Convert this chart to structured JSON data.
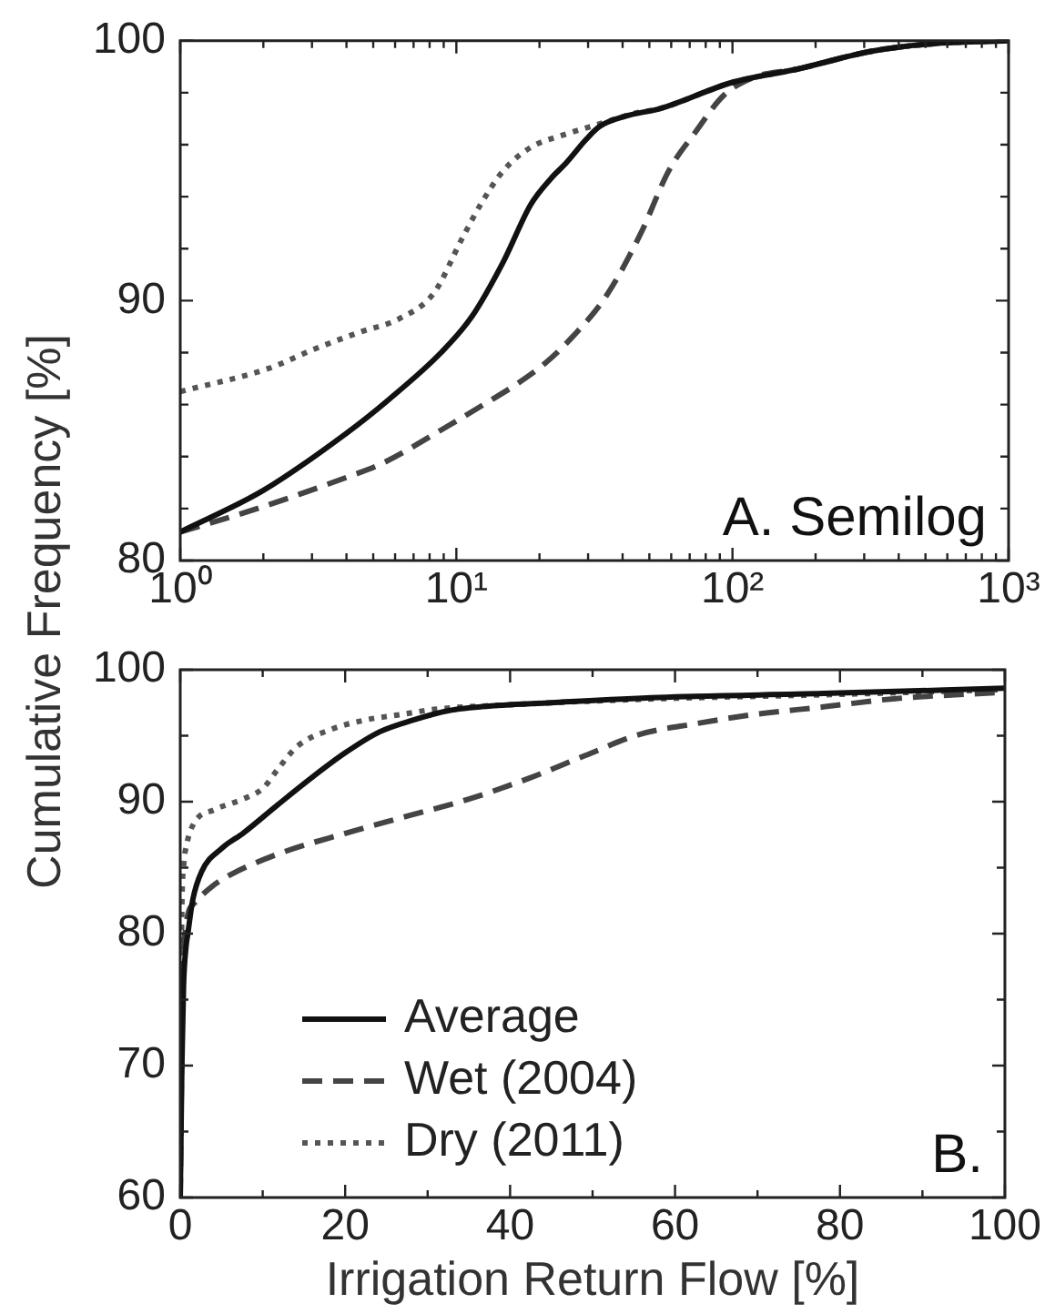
{
  "chart_data": [
    {
      "type": "line",
      "ylabel": "Cumulative Frequency [%]",
      "annotations": [
        "A. Semilog"
      ],
      "log": "x",
      "marker": "none",
      "xlim": [
        1,
        1000
      ],
      "xticks": [
        {
          "value": 1,
          "label": "10⁰"
        },
        {
          "value": 2,
          "label": null
        },
        {
          "value": 3,
          "label": null
        },
        {
          "value": 4,
          "label": null
        },
        {
          "value": 5,
          "label": null
        },
        {
          "value": 6,
          "label": null
        },
        {
          "value": 7,
          "label": null
        },
        {
          "value": 8,
          "label": null
        },
        {
          "value": 9,
          "label": null
        },
        {
          "value": 10,
          "label": "10¹"
        },
        {
          "value": 20,
          "label": null
        },
        {
          "value": 30,
          "label": null
        },
        {
          "value": 40,
          "label": null
        },
        {
          "value": 50,
          "label": null
        },
        {
          "value": 60,
          "label": null
        },
        {
          "value": 70,
          "label": null
        },
        {
          "value": 80,
          "label": null
        },
        {
          "value": 90,
          "label": null
        },
        {
          "value": 100,
          "label": "10²"
        },
        {
          "value": 200,
          "label": null
        },
        {
          "value": 300,
          "label": null
        },
        {
          "value": 400,
          "label": null
        },
        {
          "value": 500,
          "label": null
        },
        {
          "value": 600,
          "label": null
        },
        {
          "value": 700,
          "label": null
        },
        {
          "value": 800,
          "label": null
        },
        {
          "value": 900,
          "label": null
        },
        {
          "value": 1000,
          "label": "10³"
        }
      ],
      "ylim": [
        80,
        100
      ],
      "yticks": [
        80,
        {
          "value": 82,
          "label": null
        },
        {
          "value": 84,
          "label": null
        },
        {
          "value": 86,
          "label": null
        },
        {
          "value": 88,
          "label": null
        },
        90,
        {
          "value": 92,
          "label": null
        },
        {
          "value": 94,
          "label": null
        },
        {
          "value": 96,
          "label": null
        },
        {
          "value": 98,
          "label": null
        },
        100
      ],
      "series": [
        {
          "color": "#111111",
          "line_style": "solid",
          "x": [
            1,
            2,
            4,
            5.7,
            8.8,
            11.4,
            14.8,
            18.6,
            22,
            25,
            29.5,
            33,
            41,
            55,
            100,
            170,
            320,
            550,
            1000
          ],
          "values": [
            81.1,
            82.7,
            84.9,
            86.2,
            88.0,
            89.4,
            91.5,
            93.7,
            94.7,
            95.3,
            96.2,
            96.7,
            97.1,
            97.4,
            98.4,
            98.9,
            99.6,
            99.9,
            100
          ]
        },
        {
          "color": "#444444",
          "line_style": "dashed",
          "x": [
            1,
            1.9,
            4,
            5.3,
            9.4,
            13,
            16.6,
            21,
            26.3,
            35,
            46.6,
            58.8,
            73.6,
            93,
            120,
            170,
            320,
            550,
            1000
          ],
          "values": [
            81.1,
            82.0,
            83.2,
            83.7,
            85.2,
            86.1,
            86.8,
            87.6,
            88.6,
            90.2,
            92.6,
            95.0,
            96.5,
            97.9,
            98.6,
            98.9,
            99.6,
            99.9,
            100
          ]
        },
        {
          "color": "#555555",
          "line_style": "dotted",
          "x": [
            1,
            2.1,
            3,
            4.5,
            6.2,
            8.3,
            10.5,
            12.4,
            14.8,
            18.6,
            24.8,
            33,
            44,
            55,
            100,
            170,
            320,
            550,
            1000
          ],
          "values": [
            86.5,
            87.4,
            88.1,
            88.8,
            89.3,
            90.3,
            92.4,
            93.8,
            95.0,
            95.9,
            96.4,
            96.8,
            97.2,
            97.4,
            98.4,
            98.9,
            99.6,
            99.9,
            100
          ]
        }
      ]
    },
    {
      "type": "line",
      "xlabel": "Irrigation Return Flow [%]",
      "annotations": [
        "B."
      ],
      "legend": "bottom left",
      "marker": "none",
      "xlim": [
        0,
        100
      ],
      "xticks": [
        0,
        {
          "value": 10,
          "label": null
        },
        20,
        {
          "value": 30,
          "label": null
        },
        40,
        {
          "value": 50,
          "label": null
        },
        60,
        {
          "value": 70,
          "label": null
        },
        80,
        {
          "value": 90,
          "label": null
        },
        100
      ],
      "ylim": [
        60,
        100
      ],
      "yticks": [
        60,
        {
          "value": 65,
          "label": null
        },
        70,
        {
          "value": 75,
          "label": null
        },
        80,
        {
          "value": 85,
          "label": null
        },
        90,
        {
          "value": 95,
          "label": null
        },
        100
      ],
      "series": [
        {
          "name": "Average",
          "color": "#111111",
          "line_style": "solid",
          "x": [
            0,
            0.2,
            0.4,
            0.7,
            0.9,
            1.5,
            2.6,
            5.1,
            7.6,
            11.7,
            15.9,
            20,
            24.2,
            28.3,
            32.5,
            36.6,
            45,
            58,
            78,
            100
          ],
          "values": [
            60,
            70,
            76,
            79,
            79.9,
            82.5,
            84.7,
            86.5,
            87.6,
            89.7,
            91.8,
            93.7,
            95.3,
            96.2,
            96.9,
            97.2,
            97.5,
            97.9,
            98.2,
            98.6
          ]
        },
        {
          "name": "Wet (2004)",
          "color": "#444444",
          "line_style": "dashed",
          "x": [
            0,
            0.2,
            0.5,
            1.7,
            3.9,
            5.9,
            11.7,
            20,
            27.5,
            35,
            42.4,
            49.1,
            55.7,
            62.4,
            69.5,
            78.2,
            86.5,
            100
          ],
          "values": [
            60,
            72,
            79.5,
            82.3,
            83.6,
            84.4,
            86.0,
            87.6,
            88.9,
            90.2,
            91.8,
            93.5,
            95.1,
            95.9,
            96.6,
            97.2,
            97.8,
            98.3
          ]
        },
        {
          "name": "Dry (2011)",
          "color": "#555555",
          "line_style": "dotted",
          "x": [
            0,
            0.1,
            0.2,
            0.4,
            0.8,
            1.7,
            4.2,
            7.6,
            10,
            12,
            14.2,
            18.4,
            22.5,
            26.7,
            30.8,
            38.3,
            58,
            78,
            100
          ],
          "values": [
            60,
            75,
            82,
            85,
            86.8,
            88.4,
            89.4,
            90.2,
            91.0,
            92.6,
            94.2,
            95.5,
            96.2,
            96.6,
            97.0,
            97.3,
            97.8,
            98.1,
            98.5
          ]
        }
      ]
    }
  ]
}
